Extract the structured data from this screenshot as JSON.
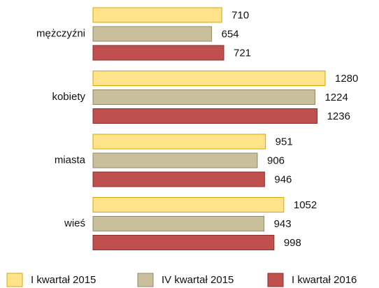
{
  "chart_data": {
    "type": "bar",
    "orientation": "horizontal",
    "categories": [
      "mężczyźni",
      "kobiety",
      "miasta",
      "wieś"
    ],
    "series": [
      {
        "name": "I kwartał 2015",
        "color": "#FFE38A",
        "values": [
          710,
          1280,
          951,
          1052
        ]
      },
      {
        "name": "IV kwartał 2015",
        "color": "#C9C09B",
        "values": [
          654,
          1224,
          906,
          943
        ]
      },
      {
        "name": "I kwartał 2016",
        "color": "#C0504D",
        "values": [
          721,
          1236,
          946,
          998
        ]
      }
    ],
    "legend": "bottom"
  }
}
